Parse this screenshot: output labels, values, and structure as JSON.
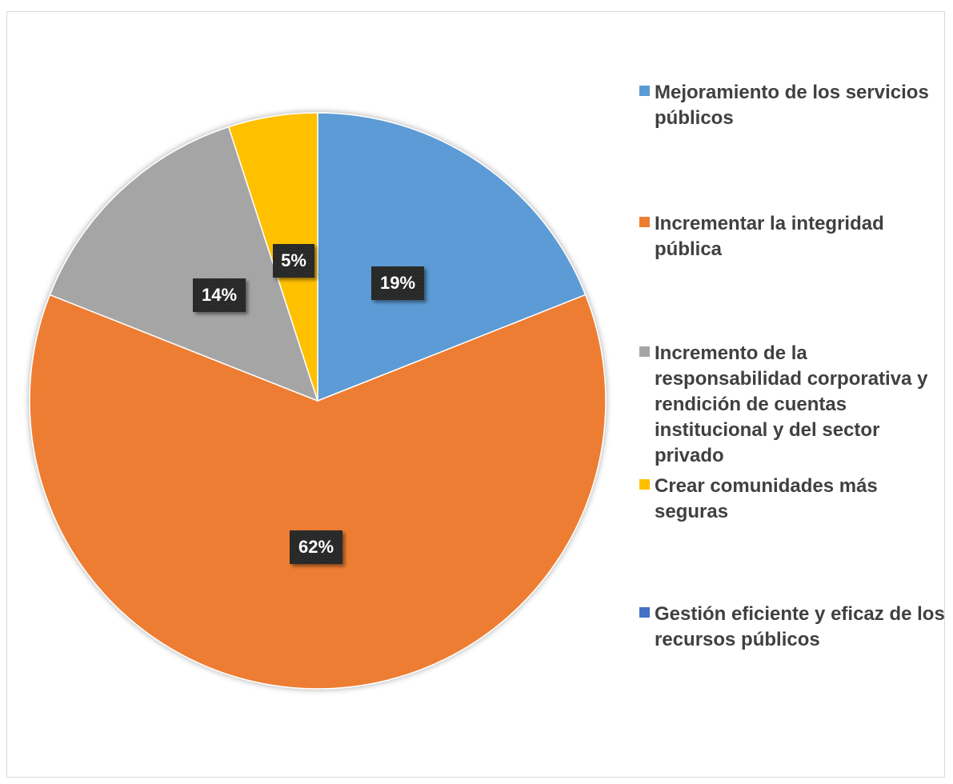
{
  "chart_data": {
    "type": "pie",
    "start_angle": "12 o'clock",
    "direction": "clockwise",
    "data_label_style": "dark patterned box with white bold text",
    "legend_position": "right",
    "slices": [
      {
        "label": "Mejoramiento de los servicios públicos",
        "value": 19,
        "value_label": "19%",
        "color": "#5B9BD5"
      },
      {
        "label": "Incrementar la integridad pública",
        "value": 62,
        "value_label": "62%",
        "color": "#ED7D31"
      },
      {
        "label": "Incremento de la responsabilidad corporativa y rendición de cuentas institucional y del sector privado",
        "value": 14,
        "value_label": "14%",
        "color": "#A5A5A5"
      },
      {
        "label": "Crear comunidades más seguras",
        "value": 5,
        "value_label": "5%",
        "color": "#FFC000"
      },
      {
        "label": "Gestión eficiente y eficaz de los recursos públicos",
        "value": 0,
        "value_label": "",
        "color": "#4472C4"
      }
    ]
  }
}
